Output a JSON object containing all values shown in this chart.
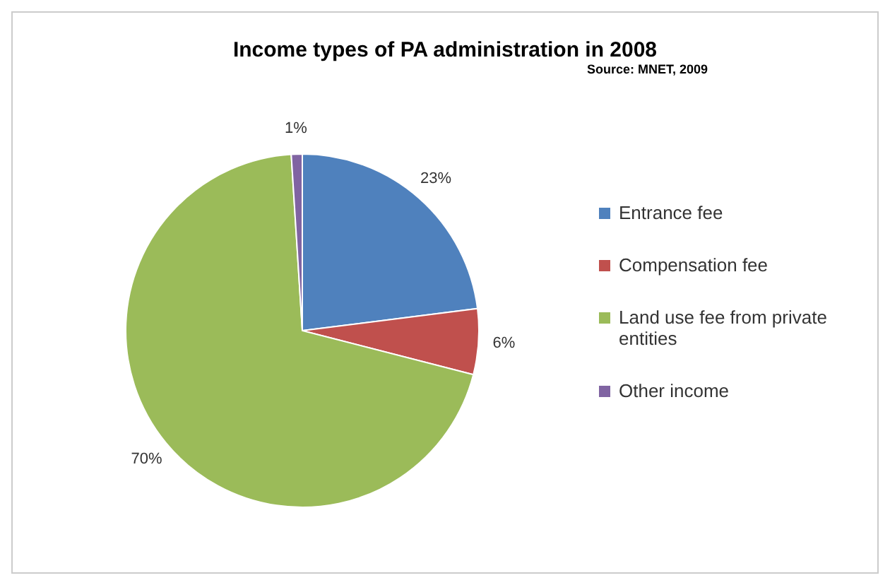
{
  "chart_data": {
    "type": "pie",
    "title": "Income types of PA administration in 2008",
    "subtitle": "Source: MNET, 2009",
    "categories": [
      "Entrance fee",
      "Compensation fee",
      "Land use fee from private entities",
      "Other income"
    ],
    "values": [
      23,
      6,
      70,
      1
    ],
    "colors": [
      "#4f81bd",
      "#c0504d",
      "#9bbb59",
      "#8064a2"
    ],
    "value_labels": [
      "23%",
      "6%",
      "70%",
      "1%"
    ],
    "legend": "right"
  }
}
